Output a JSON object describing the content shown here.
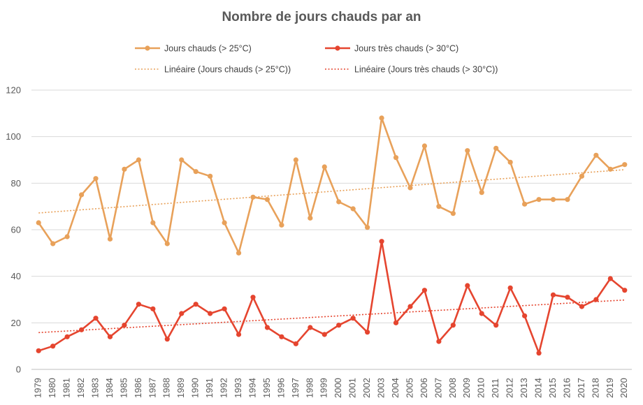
{
  "chart_data": {
    "type": "line",
    "title": "Nombre de jours chauds par an",
    "x": [
      "1979",
      "1980",
      "1981",
      "1982",
      "1983",
      "1984",
      "1985",
      "1986",
      "1987",
      "1988",
      "1989",
      "1990",
      "1991",
      "1992",
      "1993",
      "1994",
      "1995",
      "1996",
      "1997",
      "1998",
      "1999",
      "2000",
      "2001",
      "2002",
      "2003",
      "2004",
      "2005",
      "2006",
      "2007",
      "2008",
      "2009",
      "2010",
      "2011",
      "2012",
      "2013",
      "2014",
      "2015",
      "2016",
      "2017",
      "2018",
      "2019",
      "2020"
    ],
    "ylim": [
      0,
      120
    ],
    "yticks": [
      0,
      20,
      40,
      60,
      80,
      100,
      120
    ],
    "grid": "horizontal",
    "legend_position": "top",
    "series": [
      {
        "name": "Jours chauds (> 25°C)",
        "color": "#E8A15A",
        "values": [
          63,
          54,
          57,
          75,
          82,
          56,
          86,
          90,
          63,
          54,
          90,
          85,
          83,
          63,
          50,
          74,
          73,
          62,
          90,
          65,
          87,
          72,
          69,
          61,
          108,
          91,
          78,
          96,
          70,
          67,
          94,
          76,
          95,
          89,
          71,
          73,
          73,
          73,
          83,
          92,
          86,
          88
        ]
      },
      {
        "name": "Jours très chauds (> 30°C)",
        "color": "#E5452F",
        "values": [
          8,
          10,
          14,
          17,
          22,
          14,
          19,
          28,
          26,
          13,
          24,
          28,
          24,
          26,
          15,
          31,
          18,
          14,
          11,
          18,
          15,
          19,
          22,
          16,
          55,
          20,
          27,
          34,
          12,
          19,
          36,
          24,
          19,
          35,
          23,
          7,
          32,
          31,
          27,
          30,
          39,
          34
        ]
      }
    ],
    "trendlines": [
      {
        "name": "Linéaire (Jours chauds (> 25°C))",
        "color": "#E8A15A",
        "start": 67.2,
        "end": 85.8
      },
      {
        "name": "Linéaire (Jours très chauds (> 30°C))",
        "color": "#E5452F",
        "start": 15.8,
        "end": 29.8
      }
    ]
  }
}
